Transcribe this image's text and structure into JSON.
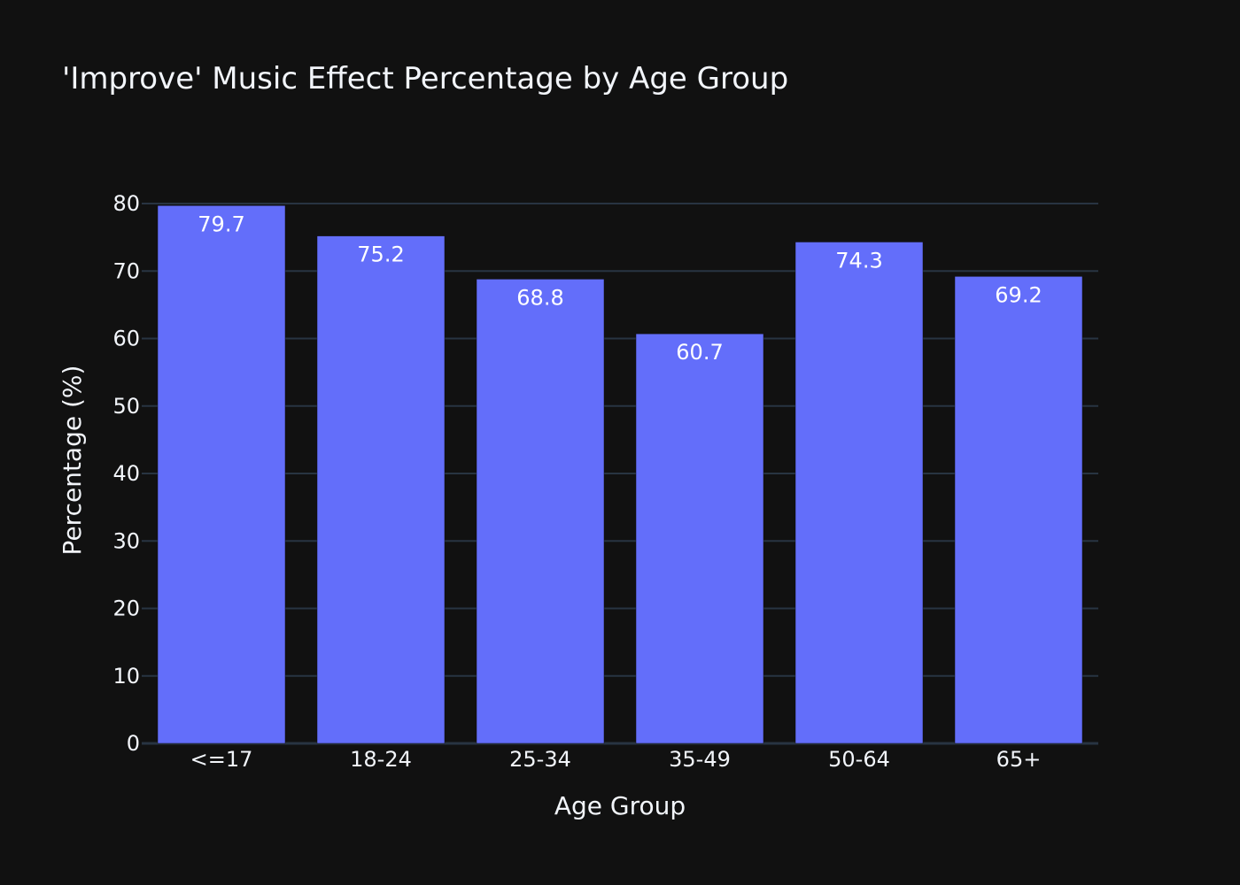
{
  "chart_data": {
    "type": "bar",
    "title": "'Improve' Music Effect Percentage by Age Group",
    "xlabel": "Age Group",
    "ylabel": "Percentage (%)",
    "categories": [
      "<=17",
      "18-24",
      "25-34",
      "35-49",
      "50-64",
      "65+"
    ],
    "values": [
      79.7,
      75.2,
      68.8,
      60.7,
      74.3,
      69.2
    ],
    "data_labels": [
      "79.7",
      "75.2",
      "68.8",
      "60.7",
      "74.3",
      "69.2"
    ],
    "ylim": [
      0,
      80
    ],
    "yticks": [
      0,
      10,
      20,
      30,
      40,
      50,
      60,
      70,
      80
    ],
    "ytick_labels": [
      "0",
      "10",
      "20",
      "30",
      "40",
      "50",
      "60",
      "70",
      "80"
    ],
    "grid": true,
    "legend": "none",
    "colors": {
      "background": "#111111",
      "bar": "#636efa",
      "grid": "#283442",
      "text": "#f2f5fa"
    }
  }
}
